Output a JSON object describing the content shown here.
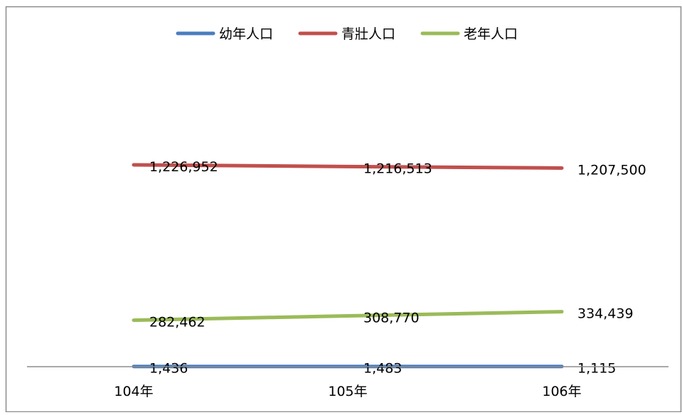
{
  "chart_data": {
    "type": "line",
    "title": "",
    "xlabel": "",
    "ylabel": "",
    "categories": [
      "104年",
      "105年",
      "106年"
    ],
    "legend_position": "top",
    "grid": false,
    "series": [
      {
        "name": "幼年人口",
        "color": "#4a7dbf",
        "values": [
          1436,
          1483,
          1115
        ],
        "labels": [
          "1,436",
          "1,483",
          "1,115"
        ]
      },
      {
        "name": "青壯人口",
        "color": "#c0504d",
        "values": [
          1226952,
          1216513,
          1207500
        ],
        "labels": [
          "1,226,952",
          "1,216,513",
          "1,207,500"
        ]
      },
      {
        "name": "老年人口",
        "color": "#9bbb59",
        "values": [
          282462,
          308770,
          334439
        ],
        "labels": [
          "282,462",
          "308,770",
          "334,439"
        ]
      }
    ]
  }
}
